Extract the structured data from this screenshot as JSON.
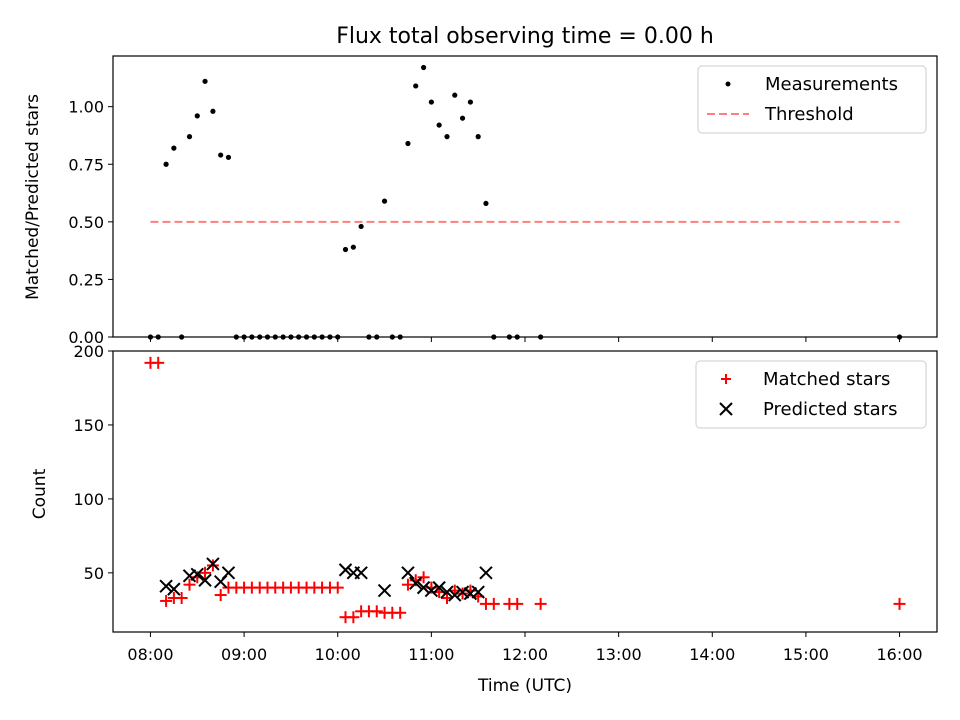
{
  "chart_data": [
    {
      "type": "scatter",
      "title": "Flux total observing time = 0.00 h",
      "xlabel": "",
      "ylabel": "Matched/Predicted stars",
      "ylim": [
        0,
        1.22
      ],
      "yticks": [
        0.0,
        0.25,
        0.5,
        0.75,
        1.0
      ],
      "ytick_labels": [
        "0.00",
        "0.25",
        "0.50",
        "0.75",
        "1.00"
      ],
      "legend_position": "top-right",
      "legend": [
        "Measurements",
        "Threshold"
      ],
      "series": [
        {
          "name": "Measurements",
          "kind": "dot",
          "color": "#000000",
          "x": [
            8.0,
            8.083,
            8.167,
            8.25,
            8.333,
            8.417,
            8.5,
            8.583,
            8.667,
            8.75,
            8.833,
            8.917,
            9.0,
            9.083,
            9.167,
            9.25,
            9.333,
            9.417,
            9.5,
            9.583,
            9.667,
            9.75,
            9.833,
            9.917,
            10.0,
            10.083,
            10.167,
            10.25,
            10.333,
            10.417,
            10.5,
            10.583,
            10.667,
            10.75,
            10.833,
            10.917,
            11.0,
            11.083,
            11.167,
            11.25,
            11.333,
            11.417,
            11.5,
            11.583,
            11.667,
            11.833,
            11.917,
            12.167,
            16.0
          ],
          "y": [
            0.0,
            0.0,
            0.75,
            0.82,
            0.0,
            0.87,
            0.96,
            1.11,
            0.98,
            0.79,
            0.78,
            0.0,
            0.0,
            0.0,
            0.0,
            0.0,
            0.0,
            0.0,
            0.0,
            0.0,
            0.0,
            0.0,
            0.0,
            0.0,
            0.0,
            0.38,
            0.39,
            0.48,
            0.0,
            0.0,
            0.59,
            0.0,
            0.0,
            0.84,
            1.09,
            1.17,
            1.02,
            0.92,
            0.87,
            1.05,
            0.95,
            1.02,
            0.87,
            0.58,
            0.0,
            0.0,
            0.0,
            0.0,
            0.0
          ]
        },
        {
          "name": "Threshold",
          "kind": "dashed-line",
          "color": "#ff7f7f",
          "x": [
            8.0,
            16.0
          ],
          "y": [
            0.5,
            0.5
          ]
        }
      ]
    },
    {
      "type": "scatter",
      "title": "",
      "xlabel": "Time (UTC)",
      "ylabel": "Count",
      "ylim": [
        10,
        200
      ],
      "yticks": [
        50,
        100,
        150,
        200
      ],
      "ytick_labels": [
        "50",
        "100",
        "150",
        "200"
      ],
      "xlim": [
        7.6,
        16.4
      ],
      "xticks": [
        8,
        9,
        10,
        11,
        12,
        13,
        14,
        15,
        16
      ],
      "xtick_labels": [
        "08:00",
        "09:00",
        "10:00",
        "11:00",
        "12:00",
        "13:00",
        "14:00",
        "15:00",
        "16:00"
      ],
      "legend_position": "top-right",
      "legend": [
        "Matched stars",
        "Predicted stars"
      ],
      "series": [
        {
          "name": "Matched stars",
          "kind": "plus",
          "color": "#ff0000",
          "x": [
            8.0,
            8.083,
            8.167,
            8.25,
            8.333,
            8.417,
            8.5,
            8.583,
            8.667,
            8.75,
            8.833,
            8.917,
            9.0,
            9.083,
            9.167,
            9.25,
            9.333,
            9.417,
            9.5,
            9.583,
            9.667,
            9.75,
            9.833,
            9.917,
            10.0,
            10.083,
            10.167,
            10.25,
            10.333,
            10.417,
            10.5,
            10.583,
            10.667,
            10.75,
            10.833,
            10.917,
            11.0,
            11.083,
            11.167,
            11.25,
            11.333,
            11.417,
            11.5,
            11.583,
            11.667,
            11.833,
            11.917,
            12.167,
            16.0
          ],
          "y": [
            192,
            192,
            31,
            33,
            33,
            42,
            47,
            50,
            55,
            35,
            40,
            40,
            40,
            40,
            40,
            40,
            40,
            40,
            40,
            40,
            40,
            40,
            40,
            40,
            40,
            20,
            20,
            24,
            24,
            24,
            23,
            23,
            23,
            42,
            45,
            47,
            40,
            37,
            33,
            38,
            36,
            38,
            34,
            29,
            29,
            29,
            29,
            29,
            29
          ]
        },
        {
          "name": "Predicted stars",
          "kind": "x",
          "color": "#000000",
          "x": [
            8.167,
            8.25,
            8.417,
            8.5,
            8.583,
            8.667,
            8.75,
            8.833,
            10.083,
            10.167,
            10.25,
            10.5,
            10.75,
            10.833,
            10.917,
            11.0,
            11.083,
            11.167,
            11.25,
            11.333,
            11.417,
            11.5,
            11.583
          ],
          "y": [
            41,
            39,
            48,
            49,
            45,
            56,
            44,
            50,
            52,
            50,
            50,
            38,
            50,
            43,
            40,
            38,
            40,
            37,
            35,
            37,
            36,
            37,
            50
          ]
        }
      ]
    }
  ]
}
